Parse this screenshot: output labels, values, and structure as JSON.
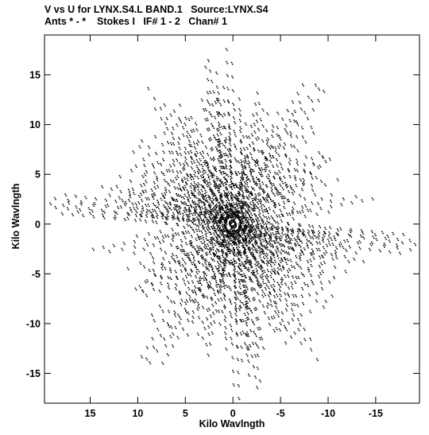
{
  "header": {
    "line1": "V vs U for LYNX.S4.L BAND.1   Source:LYNX.S4",
    "line2": "Ants * - *    Stokes I   IF# 1 - 2   Chan# 1"
  },
  "chart_data": {
    "type": "scatter",
    "title": "V vs U for LYNX.S4.L BAND.1   Source:LYNX.S4",
    "subtitle": "Ants * - *    Stokes I   IF# 1 - 2   Chan# 1",
    "xlabel": "Kilo Wavlngth",
    "ylabel": "Kilo Wavlngth",
    "xlim": [
      19.8,
      -19.6
    ],
    "ylim": [
      -18.0,
      19.0
    ],
    "xticks": [
      15,
      10,
      5,
      0,
      -5,
      -10,
      -15
    ],
    "yticks": [
      15,
      10,
      5,
      0,
      -5,
      -10,
      -15
    ],
    "xtick_labels": [
      "15",
      "10",
      "5",
      "0",
      "-5",
      "-10",
      "-15"
    ],
    "ytick_labels": [
      "15",
      "10",
      "5",
      "0",
      "-5",
      "-10",
      "-15"
    ],
    "x_reversed": true,
    "grid": false,
    "color": "#000000",
    "n_arms": 27,
    "arm_angles_deg": [
      5,
      14,
      22,
      35,
      46,
      57,
      66,
      80,
      88,
      101,
      112,
      122,
      133,
      146,
      158,
      170,
      187,
      197,
      207,
      220,
      235,
      245,
      259,
      268,
      283,
      299,
      322
    ],
    "arm_outer_radius_kl": [
      19.0,
      14.5,
      13.5,
      13.0,
      12.7,
      16.5,
      12.6,
      17.3,
      13.0,
      13.5,
      12.8,
      17.0,
      13.5,
      13.0,
      12.5,
      15.5,
      19.6,
      13.0,
      12.5,
      13.5,
      12.5,
      13.5,
      16.2,
      17.6,
      13.5,
      15.0,
      12.5
    ],
    "symmetry": "each visibility (u,v) also plotted at (-u,-v)",
    "sampling": "points along radial arms, tracks offset perpendicular to arms"
  }
}
